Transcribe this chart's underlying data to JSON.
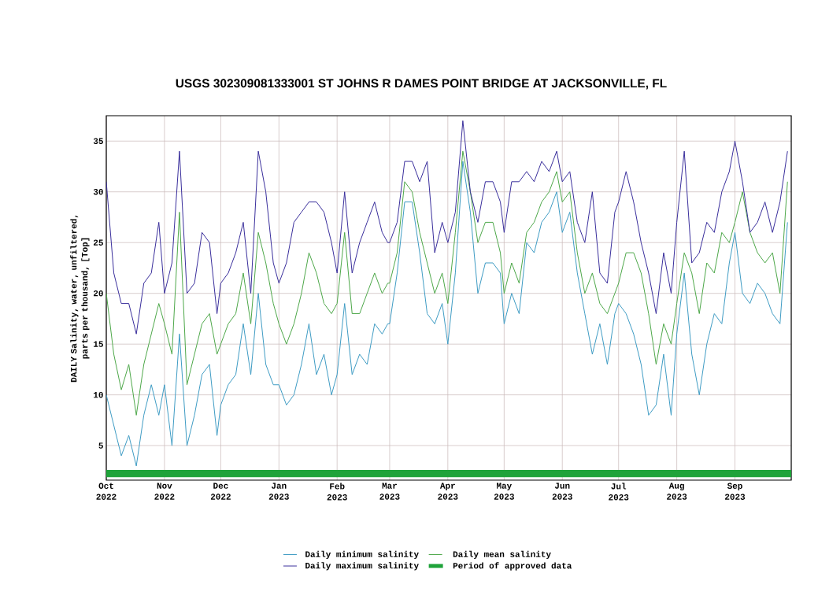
{
  "chart_data": {
    "type": "line",
    "title": "USGS 302309081333001 ST JOHNS R DAMES POINT BRIDGE AT JACKSONVILLE, FL",
    "ylabel": "DAILY Salinity, water, unfiltered, parts per thousand, [Top]",
    "x": [
      "2022-10-01",
      "2022-10-05",
      "2022-10-09",
      "2022-10-13",
      "2022-10-17",
      "2022-10-21",
      "2022-10-25",
      "2022-10-29",
      "2022-11-01",
      "2022-11-05",
      "2022-11-09",
      "2022-11-13",
      "2022-11-17",
      "2022-11-21",
      "2022-11-25",
      "2022-11-29",
      "2022-12-01",
      "2022-12-05",
      "2022-12-09",
      "2022-12-13",
      "2022-12-17",
      "2022-12-21",
      "2022-12-25",
      "2022-12-29",
      "2023-01-01",
      "2023-01-05",
      "2023-01-09",
      "2023-01-13",
      "2023-01-17",
      "2023-01-21",
      "2023-01-25",
      "2023-01-29",
      "2023-02-01",
      "2023-02-05",
      "2023-02-09",
      "2023-02-13",
      "2023-02-17",
      "2023-02-21",
      "2023-02-25",
      "2023-02-28",
      "2023-03-01",
      "2023-03-05",
      "2023-03-09",
      "2023-03-13",
      "2023-03-17",
      "2023-03-21",
      "2023-03-25",
      "2023-03-29",
      "2023-04-01",
      "2023-04-05",
      "2023-04-09",
      "2023-04-13",
      "2023-04-17",
      "2023-04-21",
      "2023-04-25",
      "2023-04-29",
      "2023-05-01",
      "2023-05-05",
      "2023-05-09",
      "2023-05-13",
      "2023-05-17",
      "2023-05-21",
      "2023-05-25",
      "2023-05-29",
      "2023-06-01",
      "2023-06-05",
      "2023-06-09",
      "2023-06-13",
      "2023-06-17",
      "2023-06-21",
      "2023-06-25",
      "2023-06-29",
      "2023-07-01",
      "2023-07-05",
      "2023-07-09",
      "2023-07-13",
      "2023-07-17",
      "2023-07-21",
      "2023-07-25",
      "2023-07-29",
      "2023-08-01",
      "2023-08-05",
      "2023-08-09",
      "2023-08-13",
      "2023-08-17",
      "2023-08-21",
      "2023-08-25",
      "2023-08-29",
      "2023-09-01",
      "2023-09-05",
      "2023-09-09",
      "2023-09-13",
      "2023-09-17",
      "2023-09-21",
      "2023-09-25",
      "2023-09-29"
    ],
    "series": [
      {
        "name": "Daily minimum salinity",
        "color": "#3f9cc4",
        "values": [
          10,
          7,
          4,
          6,
          3,
          8,
          11,
          8,
          11,
          5,
          16,
          5,
          8,
          12,
          13,
          6,
          9,
          11,
          12,
          17,
          12,
          20,
          13,
          11,
          11,
          9,
          10,
          13,
          17,
          12,
          14,
          10,
          12,
          19,
          12,
          14,
          13,
          17,
          16,
          17,
          17,
          22,
          29,
          29,
          24,
          18,
          17,
          19,
          15,
          22,
          33,
          28,
          20,
          23,
          23,
          22,
          17,
          20,
          18,
          25,
          24,
          27,
          28,
          30,
          26,
          28,
          22,
          18,
          14,
          17,
          13,
          18,
          19,
          18,
          16,
          13,
          8,
          9,
          14,
          8,
          16,
          22,
          14,
          10,
          15,
          18,
          17,
          23,
          26,
          20,
          19,
          21,
          20,
          18,
          17,
          27
        ]
      },
      {
        "name": "Daily mean salinity",
        "color": "#4ea84a",
        "values": [
          20,
          14,
          10.5,
          13,
          8,
          13,
          16,
          19,
          17,
          14,
          28,
          11,
          14,
          17,
          18,
          14,
          15,
          17,
          18,
          22,
          17,
          26,
          23,
          19,
          17,
          15,
          17,
          20,
          24,
          22,
          19,
          18,
          19,
          26,
          18,
          18,
          20,
          22,
          20,
          21,
          21,
          24,
          31,
          30,
          26,
          23,
          20,
          22,
          19,
          26,
          34,
          30,
          25,
          27,
          27,
          24,
          20,
          23,
          21,
          26,
          27,
          29,
          30,
          32,
          29,
          30,
          24,
          20,
          22,
          19,
          18,
          20,
          21,
          24,
          24,
          22,
          18,
          13,
          17,
          15,
          19,
          24,
          22,
          18,
          23,
          22,
          26,
          25,
          27,
          30,
          26,
          24,
          23,
          24,
          20,
          31
        ]
      },
      {
        "name": "Daily maximum salinity",
        "color": "#3a2f9c",
        "values": [
          31,
          22,
          19,
          19,
          16,
          21,
          22,
          27,
          20,
          23,
          34,
          20,
          21,
          26,
          25,
          18,
          21,
          22,
          24,
          27,
          20,
          34,
          30,
          23,
          21,
          23,
          27,
          28,
          29,
          29,
          28,
          25,
          22,
          30,
          22,
          25,
          27,
          29,
          26,
          25,
          25,
          27,
          33,
          33,
          31,
          33,
          24,
          27,
          25,
          28,
          37,
          30,
          27,
          31,
          31,
          29,
          26,
          31,
          31,
          32,
          31,
          33,
          32,
          34,
          31,
          32,
          27,
          25,
          30,
          22,
          21,
          28,
          29,
          32,
          29,
          25,
          22,
          18,
          24,
          20,
          27,
          34,
          23,
          24,
          27,
          26,
          30,
          32,
          35,
          31,
          26,
          27,
          29,
          26,
          29,
          34
        ]
      }
    ],
    "bands": [
      {
        "axis": "y",
        "from": 1.9,
        "to": 2.6,
        "label": "Period of approved data",
        "color": "#1fa33a"
      }
    ],
    "xlim": [
      "2022-10-01",
      "2023-10-01"
    ],
    "xticks": [
      {
        "value": "2022-10-01",
        "label": "Oct 2022"
      },
      {
        "value": "2022-11-01",
        "label": "Nov 2022"
      },
      {
        "value": "2022-12-01",
        "label": "Dec 2022"
      },
      {
        "value": "2023-01-01",
        "label": "Jan 2023"
      },
      {
        "value": "2023-02-01",
        "label": "Feb 2023"
      },
      {
        "value": "2023-03-01",
        "label": "Mar 2023"
      },
      {
        "value": "2023-04-01",
        "label": "Apr 2023"
      },
      {
        "value": "2023-05-01",
        "label": "May 2023"
      },
      {
        "value": "2023-06-01",
        "label": "Jun 2023"
      },
      {
        "value": "2023-07-01",
        "label": "Jul 2023"
      },
      {
        "value": "2023-08-01",
        "label": "Aug 2023"
      },
      {
        "value": "2023-09-01",
        "label": "Sep 2023"
      }
    ],
    "ylim": [
      1.6,
      37.5
    ],
    "yticks": [
      5,
      10,
      15,
      20,
      25,
      30,
      35
    ],
    "grid": true,
    "legend": "bottom",
    "marker": "none",
    "line_style": "solid"
  }
}
